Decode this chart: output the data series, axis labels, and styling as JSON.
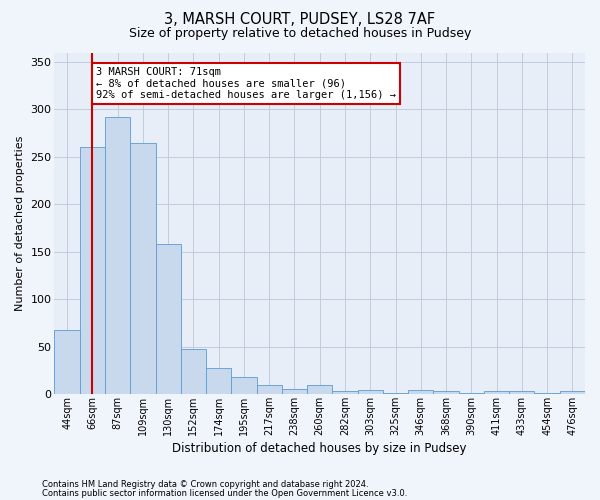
{
  "title1": "3, MARSH COURT, PUDSEY, LS28 7AF",
  "title2": "Size of property relative to detached houses in Pudsey",
  "xlabel": "Distribution of detached houses by size in Pudsey",
  "ylabel": "Number of detached properties",
  "footnote1": "Contains HM Land Registry data © Crown copyright and database right 2024.",
  "footnote2": "Contains public sector information licensed under the Open Government Licence v3.0.",
  "annotation_line1": "3 MARSH COURT: 71sqm",
  "annotation_line2": "← 8% of detached houses are smaller (96)",
  "annotation_line3": "92% of semi-detached houses are larger (1,156) →",
  "bar_color": "#c9d9ed",
  "bar_edge_color": "#5b9bd5",
  "marker_color": "#cc0000",
  "categories": [
    "44sqm",
    "66sqm",
    "87sqm",
    "109sqm",
    "130sqm",
    "152sqm",
    "174sqm",
    "195sqm",
    "217sqm",
    "238sqm",
    "260sqm",
    "282sqm",
    "303sqm",
    "325sqm",
    "346sqm",
    "368sqm",
    "390sqm",
    "411sqm",
    "433sqm",
    "454sqm",
    "476sqm"
  ],
  "values": [
    68,
    260,
    292,
    265,
    158,
    48,
    28,
    18,
    10,
    6,
    10,
    3,
    4,
    1,
    4,
    3,
    1,
    3,
    3,
    1,
    3
  ],
  "ylim": [
    0,
    360
  ],
  "yticks": [
    0,
    50,
    100,
    150,
    200,
    250,
    300,
    350
  ],
  "marker_bar_index": 1,
  "bg_color": "#f0f4fb",
  "plot_bg_color": "#e8eef8",
  "grid_color": "#c0ccdd",
  "annotation_box_color": "#ffffff",
  "annotation_box_edge": "#cc0000"
}
